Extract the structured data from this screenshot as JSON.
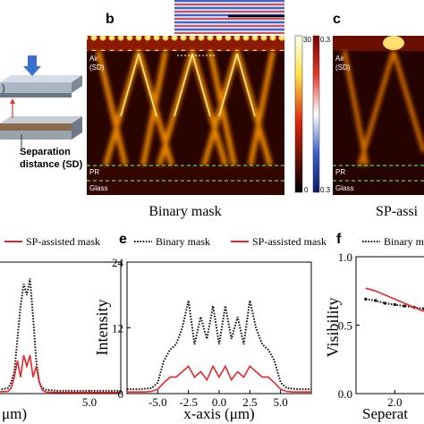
{
  "schematic": {
    "fragment": ")",
    "label_line1": "Separation",
    "label_line2": "distance (SD)"
  },
  "panel_b": {
    "letter": "b",
    "air": "Air",
    "sd": "(SD)",
    "pr": "PR",
    "glass": "Glass",
    "caption": "Binary mask",
    "colorbar_intensity": {
      "max": 30,
      "min": 0
    },
    "colorbar_field": {
      "max": 0.3,
      "min": 0.3
    }
  },
  "panel_c": {
    "letter": "c",
    "air": "Air",
    "sd": "(SD)",
    "pr": "PR",
    "glass": "Glass",
    "caption": "SP-assi"
  },
  "chart_data": [
    {
      "type": "line",
      "xlabel": "μm)",
      "xlim": [
        -7.5,
        7.5
      ],
      "xticks": [
        {
          "value": 5,
          "label": "5.0"
        }
      ],
      "ylim": [
        0,
        24
      ],
      "x": [
        -7.5,
        -5,
        -2.5,
        -1.5,
        -1.25,
        -1,
        -0.75,
        -0.5,
        -0.25,
        0,
        0.25,
        0.5,
        0.75,
        1,
        1.25,
        1.5,
        2.5,
        5,
        7.5
      ],
      "series": [
        {
          "color": "#111111",
          "dash": "dotted",
          "values": [
            0.5,
            0.5,
            0.6,
            1,
            2,
            4,
            10,
            16,
            20,
            18,
            21,
            14,
            6,
            2,
            1,
            0.7,
            0.5,
            0.5,
            0.5
          ]
        },
        {
          "name": "SP-assisted mask",
          "color": "#e8262a",
          "values": [
            0.2,
            0.2,
            0.3,
            0.4,
            1,
            3,
            6,
            3,
            7,
            5,
            7,
            3,
            5,
            2,
            0.6,
            0.3,
            0.2,
            0.2,
            0.2
          ]
        }
      ]
    },
    {
      "type": "line",
      "letter": "e",
      "xlabel": "x-axis (μm)",
      "ylabel": "Intensity",
      "xlim": [
        -7.5,
        7.5
      ],
      "xticks": [
        {
          "value": -5,
          "label": "-5.0"
        },
        -2.5,
        {
          "value": 0,
          "label": "0.0"
        },
        2.5,
        {
          "value": 5,
          "label": "5.0"
        }
      ],
      "ylim": [
        0,
        24
      ],
      "yticks": [
        0,
        12,
        24
      ],
      "x": [
        -7.5,
        -7,
        -6.5,
        -6,
        -5.5,
        -5,
        -4.5,
        -4,
        -3.5,
        -3,
        -2.5,
        -2,
        -1.5,
        -1,
        -0.5,
        0,
        0.5,
        1,
        1.5,
        2,
        2.5,
        3,
        3.5,
        4,
        4.5,
        5,
        5.5,
        6,
        6.5,
        7,
        7.5
      ],
      "series": [
        {
          "name": "Binary mask",
          "color": "#111111",
          "dash": "dotted",
          "values": [
            0.8,
            0.8,
            0.8,
            0.9,
            1,
            2,
            6,
            8,
            9,
            12,
            17,
            9,
            14,
            10,
            16,
            9,
            16,
            10,
            14,
            9,
            17,
            12,
            9,
            8,
            6,
            2,
            1,
            0.9,
            0.8,
            0.8,
            0.8
          ]
        },
        {
          "name": "SP-assisted mask",
          "color": "#e8262a",
          "values": [
            0.3,
            0.3,
            0.3,
            0.3,
            0.4,
            0.8,
            2,
            3,
            3,
            4,
            5,
            3,
            4,
            2.5,
            5,
            3,
            5,
            2.5,
            4,
            3,
            5,
            4,
            3,
            3,
            2,
            0.8,
            0.4,
            0.3,
            0.3,
            0.3,
            0.3
          ]
        }
      ]
    },
    {
      "type": "line",
      "letter": "f",
      "xlabel": "Seperat",
      "ylabel": "Visibility",
      "xlim": [
        0,
        3.6
      ],
      "xticks": [
        {
          "value": 2,
          "label": "2.0"
        }
      ],
      "ylim": [
        0,
        1
      ],
      "yticks": [
        {
          "value": 0,
          "label": "0.0"
        },
        0.5,
        {
          "value": 1,
          "label": "1.0"
        }
      ],
      "x": [
        0.5,
        1,
        1.5,
        2,
        2.5,
        3,
        3.5
      ],
      "series": [
        {
          "name": "Binary m",
          "color": "#111111",
          "dash": "dotted",
          "markers": true,
          "values": [
            0.69,
            0.68,
            0.66,
            0.65,
            0.64,
            0.63,
            0.62
          ]
        },
        {
          "color": "#e8262a",
          "values": [
            0.77,
            0.75,
            0.72,
            0.69,
            0.66,
            0.63,
            0.6
          ]
        }
      ]
    }
  ]
}
